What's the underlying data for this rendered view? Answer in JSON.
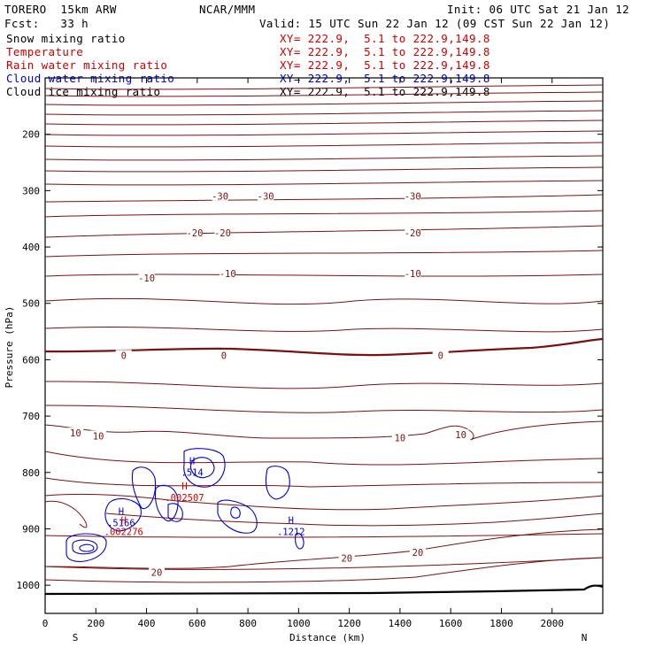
{
  "header": {
    "model": "TORERO  15km ARW",
    "center": "NCAR/MMM",
    "init": "Init: 06 UTC Sat 21 Jan 12",
    "fcst": "Fcst:   33 h",
    "valid": "Valid: 15 UTC Sun 22 Jan 12 (09 CST Sun 22 Jan 12)"
  },
  "fields": [
    {
      "label": "Snow mixing ratio",
      "xy": "XY= 222.9,  5.1 to 222.9,149.8",
      "color": "#000000"
    },
    {
      "label": "Temperature",
      "xy": "XY= 222.9,  5.1 to 222.9,149.8",
      "color": "#cc0000"
    },
    {
      "label": "Rain water mixing ratio",
      "xy": "XY= 222.9,  5.1 to 222.9,149.8",
      "color": "#cc0000"
    },
    {
      "label": "Cloud water mixing ratio",
      "xy": "XY= 222.9,  5.1 to 222.9,149.8",
      "color": "#0000cc"
    },
    {
      "label": "Cloud ice mixing ratio",
      "xy": "XY= 222.9,  5.1 to 222.9,149.8",
      "color": "#000000"
    }
  ],
  "chart_data": {
    "type": "contour-cross-section",
    "xlabel": "Distance (km)",
    "ylabel": "Pressure (hPa)",
    "xlim": [
      0,
      2200
    ],
    "ylim": [
      1050,
      100
    ],
    "x_ticks": [
      0,
      200,
      400,
      600,
      800,
      1000,
      1200,
      1400,
      1600,
      1800,
      2000
    ],
    "y_ticks": [
      200,
      300,
      400,
      500,
      600,
      700,
      800,
      900,
      1000
    ],
    "end_labels": {
      "left": "S",
      "right": "N"
    },
    "temperature_contour_labels": [
      {
        "value": "-30",
        "x": 690,
        "p": 310
      },
      {
        "value": "-30",
        "x": 870,
        "p": 310
      },
      {
        "value": "-30",
        "x": 1450,
        "p": 310
      },
      {
        "value": "-20",
        "x": 590,
        "p": 375
      },
      {
        "value": "-20",
        "x": 700,
        "p": 375
      },
      {
        "value": "-20",
        "x": 1450,
        "p": 375
      },
      {
        "value": "-10",
        "x": 400,
        "p": 455
      },
      {
        "value": "-10",
        "x": 720,
        "p": 447
      },
      {
        "value": "-10",
        "x": 1450,
        "p": 447
      },
      {
        "value": "0",
        "x": 310,
        "p": 592
      },
      {
        "value": "0",
        "x": 705,
        "p": 592
      },
      {
        "value": "0",
        "x": 1560,
        "p": 592
      },
      {
        "value": "10",
        "x": 120,
        "p": 730
      },
      {
        "value": "10",
        "x": 210,
        "p": 735
      },
      {
        "value": "10",
        "x": 1400,
        "p": 738
      },
      {
        "value": "10",
        "x": 1640,
        "p": 733
      },
      {
        "value": "20",
        "x": 440,
        "p": 977
      },
      {
        "value": "20",
        "x": 1190,
        "p": 952
      },
      {
        "value": "20",
        "x": 1470,
        "p": 942
      }
    ],
    "maxima": [
      {
        "label": "H",
        "value": ".514",
        "x": 580,
        "p": 790,
        "field": "Cloud water mixing ratio"
      },
      {
        "label": "H",
        "value": ".5166",
        "x": 300,
        "p": 880,
        "field": "Cloud water mixing ratio"
      },
      {
        "label": "H",
        "value": ".1212",
        "x": 970,
        "p": 895,
        "field": "Cloud water mixing ratio"
      },
      {
        "label": "H",
        "value": ".002507",
        "x": 550,
        "p": 835,
        "field": "Rain water mixing ratio"
      },
      {
        "label": "H",
        "value": ".002276",
        "x": 310,
        "p": 895,
        "field": "Rain water mixing ratio"
      }
    ]
  }
}
